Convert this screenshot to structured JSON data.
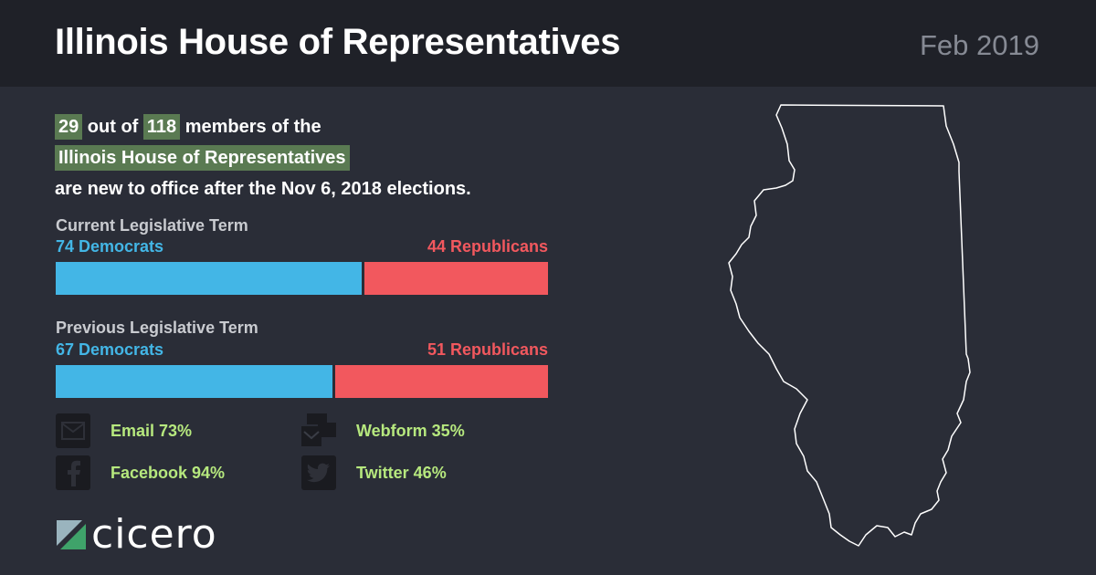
{
  "header": {
    "title": "Illinois House of Representatives",
    "date": "Feb 2019"
  },
  "headline": {
    "new_count": "29",
    "text_1": " out of ",
    "total": "118",
    "text_2": " members of the",
    "body_name": "Illinois House of Representatives",
    "text_3": "are new to office after the Nov 6, 2018 elections."
  },
  "colors": {
    "democrat": "#43b6e6",
    "republican": "#f2585e",
    "highlight": "#5a7a52",
    "stat_text": "#b6e87e"
  },
  "chart_data": [
    {
      "type": "bar",
      "title": "Current Legislative Term",
      "series": [
        {
          "name": "Democrats",
          "value": 74,
          "label": "74 Democrats"
        },
        {
          "name": "Republicans",
          "value": 44,
          "label": "44 Republicans"
        }
      ]
    },
    {
      "type": "bar",
      "title": "Previous Legislative Term",
      "series": [
        {
          "name": "Democrats",
          "value": 67,
          "label": "67 Democrats"
        },
        {
          "name": "Republicans",
          "value": 51,
          "label": "51 Republicans"
        }
      ]
    }
  ],
  "stats": {
    "email": {
      "label": "Email 73%",
      "icon": "envelope-icon"
    },
    "webform": {
      "label": "Webform 35%",
      "icon": "webform-icon"
    },
    "facebook": {
      "label": "Facebook 94%",
      "icon": "facebook-icon"
    },
    "twitter": {
      "label": "Twitter 46%",
      "icon": "twitter-icon"
    }
  },
  "logo": {
    "text": "cicero"
  }
}
